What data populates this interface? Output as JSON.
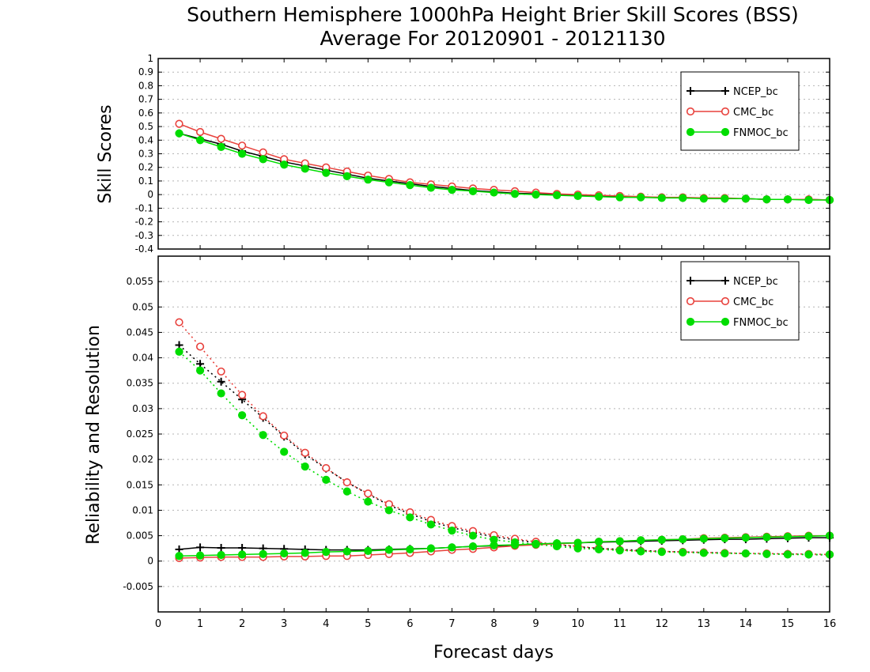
{
  "chart_data": [
    {
      "type": "line",
      "title": "Southern Hemisphere 1000hPa Height Brier Skill Scores (BSS)",
      "subtitle": "Average For 20120901 - 20121130",
      "xlabel": "",
      "ylabel": "Skill Scores",
      "xlim": [
        0,
        16
      ],
      "ylim": [
        -0.4,
        1
      ],
      "yticks": [
        -0.4,
        -0.3,
        -0.2,
        -0.1,
        0,
        0.1,
        0.2,
        0.3,
        0.4,
        0.5,
        0.6,
        0.7,
        0.8,
        0.9,
        1
      ],
      "ytick_labels": [
        "-0.4",
        "-0.3",
        "-0.2",
        "-0.1",
        "0",
        "0.1",
        "0.2",
        "0.3",
        "0.4",
        "0.5",
        "0.6",
        "0.7",
        "0.8",
        "0.9",
        "1"
      ],
      "grid": true,
      "legend_position": "top-right",
      "x": [
        0.5,
        1,
        1.5,
        2,
        2.5,
        3,
        3.5,
        4,
        4.5,
        5,
        5.5,
        6,
        6.5,
        7,
        7.5,
        8,
        8.5,
        9,
        9.5,
        10,
        10.5,
        11,
        11.5,
        12,
        12.5,
        13,
        13.5,
        14,
        14.5,
        15,
        15.5,
        16
      ],
      "series": [
        {
          "name": "NCEP_bc",
          "color": "#000000",
          "marker": "plus",
          "values": [
            0.45,
            0.41,
            0.37,
            0.32,
            0.28,
            0.24,
            0.21,
            0.18,
            0.15,
            0.12,
            0.1,
            0.08,
            0.06,
            0.045,
            0.03,
            0.02,
            0.01,
            0.005,
            0.0,
            -0.005,
            -0.01,
            -0.015,
            -0.02,
            -0.02,
            -0.025,
            -0.025,
            -0.03,
            -0.03,
            -0.035,
            -0.035,
            -0.035,
            -0.04
          ]
        },
        {
          "name": "CMC_bc",
          "color": "#e8413c",
          "marker": "circle-open",
          "values": [
            0.52,
            0.46,
            0.41,
            0.36,
            0.31,
            0.26,
            0.23,
            0.2,
            0.17,
            0.14,
            0.115,
            0.09,
            0.075,
            0.06,
            0.045,
            0.035,
            0.025,
            0.015,
            0.005,
            0.0,
            -0.005,
            -0.01,
            -0.015,
            -0.02,
            -0.02,
            -0.025,
            -0.025,
            -0.03,
            -0.035,
            -0.035,
            -0.035,
            -0.04
          ]
        },
        {
          "name": "FNMOC_bc",
          "color": "#00dd00",
          "marker": "circle-filled",
          "values": [
            0.45,
            0.4,
            0.35,
            0.3,
            0.26,
            0.22,
            0.19,
            0.16,
            0.135,
            0.11,
            0.09,
            0.07,
            0.05,
            0.035,
            0.025,
            0.015,
            0.005,
            0.0,
            -0.005,
            -0.01,
            -0.015,
            -0.02,
            -0.02,
            -0.025,
            -0.025,
            -0.03,
            -0.03,
            -0.03,
            -0.035,
            -0.035,
            -0.04,
            -0.04
          ]
        }
      ]
    },
    {
      "type": "line",
      "title": "",
      "xlabel": "Forecast days",
      "ylabel": "Reliability and Resolution",
      "xlim": [
        0,
        16
      ],
      "ylim": [
        -0.01,
        0.06
      ],
      "xticks": [
        0,
        1,
        2,
        3,
        4,
        5,
        6,
        7,
        8,
        9,
        10,
        11,
        12,
        13,
        14,
        15,
        16
      ],
      "xtick_labels": [
        "0",
        "1",
        "2",
        "3",
        "4",
        "5",
        "6",
        "7",
        "8",
        "9",
        "10",
        "11",
        "12",
        "13",
        "14",
        "15",
        "16"
      ],
      "yticks": [
        -0.005,
        0,
        0.005,
        0.01,
        0.015,
        0.02,
        0.025,
        0.03,
        0.035,
        0.04,
        0.045,
        0.05,
        0.055
      ],
      "ytick_labels": [
        "-0.005",
        "0",
        "0.005",
        "0.01",
        "0.015",
        "0.02",
        "0.025",
        "0.03",
        "0.035",
        "0.04",
        "0.045",
        "0.05",
        "0.055"
      ],
      "grid": true,
      "legend_position": "top-right",
      "x": [
        0.5,
        1,
        1.5,
        2,
        2.5,
        3,
        3.5,
        4,
        4.5,
        5,
        5.5,
        6,
        6.5,
        7,
        7.5,
        8,
        8.5,
        9,
        9.5,
        10,
        10.5,
        11,
        11.5,
        12,
        12.5,
        13,
        13.5,
        14,
        14.5,
        15,
        15.5,
        16
      ],
      "series": [
        {
          "name": "NCEP_bc",
          "color": "#000000",
          "marker": "plus",
          "line": "solid",
          "role": "reliability",
          "values": [
            0.0023,
            0.0027,
            0.0026,
            0.0026,
            0.0025,
            0.0024,
            0.0023,
            0.0022,
            0.0022,
            0.0022,
            0.0023,
            0.0024,
            0.0025,
            0.0027,
            0.0029,
            0.003,
            0.0031,
            0.0033,
            0.0035,
            0.0036,
            0.0037,
            0.0038,
            0.0039,
            0.004,
            0.0041,
            0.0042,
            0.0043,
            0.0043,
            0.0044,
            0.0045,
            0.0046,
            0.0046
          ]
        },
        {
          "name": "",
          "color": "#000000",
          "marker": "plus",
          "line": "dotted",
          "role": "resolution",
          "values": [
            0.0425,
            0.0388,
            0.0353,
            0.0318,
            0.0282,
            0.0245,
            0.021,
            0.0182,
            0.0155,
            0.0132,
            0.011,
            0.0093,
            0.0078,
            0.0066,
            0.0056,
            0.0048,
            0.0042,
            0.0036,
            0.0032,
            0.0028,
            0.0025,
            0.0023,
            0.0021,
            0.0019,
            0.0018,
            0.0017,
            0.0016,
            0.0015,
            0.0014,
            0.0014,
            0.0013,
            0.0012
          ]
        },
        {
          "name": "CMC_bc",
          "color": "#e8413c",
          "marker": "circle-open",
          "line": "solid",
          "role": "reliability",
          "values": [
            0.0006,
            0.0007,
            0.0008,
            0.0008,
            0.0008,
            0.0009,
            0.0009,
            0.001,
            0.001,
            0.0012,
            0.0014,
            0.0016,
            0.0019,
            0.0022,
            0.0024,
            0.0027,
            0.003,
            0.0032,
            0.0034,
            0.0036,
            0.0038,
            0.0039,
            0.0041,
            0.0042,
            0.0043,
            0.0045,
            0.0046,
            0.0047,
            0.0048,
            0.0049,
            0.005,
            0.005
          ]
        },
        {
          "name": "",
          "color": "#e8413c",
          "marker": "circle-open",
          "line": "dotted",
          "role": "resolution",
          "values": [
            0.047,
            0.0422,
            0.0373,
            0.0327,
            0.0285,
            0.0247,
            0.0213,
            0.0183,
            0.0155,
            0.0133,
            0.0112,
            0.0096,
            0.0081,
            0.0069,
            0.0059,
            0.0051,
            0.0044,
            0.0038,
            0.0033,
            0.0029,
            0.0025,
            0.0022,
            0.002,
            0.0019,
            0.0018,
            0.0017,
            0.0016,
            0.0015,
            0.0015,
            0.0014,
            0.0014,
            0.0013
          ]
        },
        {
          "name": "FNMOC_bc",
          "color": "#00dd00",
          "marker": "circle-filled",
          "line": "solid",
          "role": "reliability",
          "values": [
            0.001,
            0.0011,
            0.0012,
            0.0013,
            0.0014,
            0.0015,
            0.0016,
            0.0018,
            0.0019,
            0.002,
            0.0022,
            0.0023,
            0.0025,
            0.0027,
            0.0029,
            0.0031,
            0.0032,
            0.0034,
            0.0035,
            0.0036,
            0.0038,
            0.0039,
            0.0041,
            0.0042,
            0.0043,
            0.0044,
            0.0045,
            0.0046,
            0.0047,
            0.0048,
            0.0049,
            0.005
          ]
        },
        {
          "name": "",
          "color": "#00dd00",
          "marker": "circle-filled",
          "line": "dotted",
          "role": "resolution",
          "values": [
            0.0412,
            0.0375,
            0.033,
            0.0287,
            0.0248,
            0.0215,
            0.0186,
            0.016,
            0.0137,
            0.0117,
            0.01,
            0.0086,
            0.0072,
            0.006,
            0.005,
            0.0042,
            0.0037,
            0.0033,
            0.0029,
            0.0025,
            0.0023,
            0.0021,
            0.0019,
            0.0018,
            0.0017,
            0.0016,
            0.0015,
            0.0015,
            0.0014,
            0.0013,
            0.0013,
            0.0013
          ]
        }
      ]
    }
  ],
  "legend_labels": [
    "NCEP_bc",
    "CMC_bc",
    "FNMOC_bc"
  ]
}
